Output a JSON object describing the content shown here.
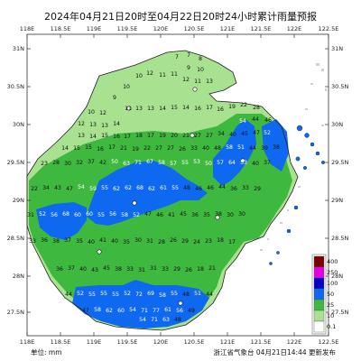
{
  "title": "2024年04月21日20时至04月22日20时24小时累计雨量预报",
  "axes": {
    "top_lon": [
      "118E",
      "118.5E",
      "119E",
      "119.5E",
      "120E",
      "120.5E",
      "121E",
      "121.5E",
      "122E",
      "122.5E"
    ],
    "bottom_lon": [
      "118E",
      "118.5E",
      "119E",
      "119.5E",
      "120E",
      "120.5E",
      "121E",
      "121.5E",
      "122E",
      "122.5E"
    ],
    "left_lat": [
      "31N",
      "30.5N",
      "30N",
      "29.5N",
      "29N",
      "28.5N",
      "28N",
      "27.5N"
    ],
    "right_lat": [
      "31N",
      "30.5N",
      "30N",
      "29.5N",
      "29N",
      "28.5N",
      "28N",
      "27.5N"
    ]
  },
  "legend": {
    "levels": [
      "400",
      "250",
      "100",
      "50",
      "25",
      "10",
      "0.1"
    ],
    "colors": [
      "#7a0000",
      "#e400e4",
      "#0000c8",
      "#0f68f0",
      "#3fb83f",
      "#a8e290",
      "#ffffff"
    ]
  },
  "footer": {
    "unit": "单位: mm",
    "issuer": "浙江省气象台 04月21日14:44 更新发布"
  },
  "stations": [
    [
      "7",
      196,
      65
    ],
    [
      "7",
      209,
      63
    ],
    [
      "8",
      222,
      67
    ],
    [
      "9",
      209,
      77
    ],
    [
      "10",
      222,
      79
    ],
    [
      "11",
      193,
      84
    ],
    [
      "12",
      206,
      90
    ],
    [
      "11",
      219,
      92
    ],
    [
      "13",
      232,
      92
    ],
    [
      "12",
      166,
      83
    ],
    [
      "11",
      180,
      85
    ],
    [
      "10",
      154,
      86
    ],
    [
      "10",
      140,
      98
    ],
    [
      "9",
      127,
      110
    ],
    [
      "10",
      101,
      126
    ],
    [
      "12",
      114,
      127
    ],
    [
      "12",
      90,
      139
    ],
    [
      "13",
      103,
      140
    ],
    [
      "13",
      116,
      141
    ],
    [
      "14",
      129,
      139
    ],
    [
      "11",
      142,
      122
    ],
    [
      "13",
      154,
      122
    ],
    [
      "13",
      167,
      122
    ],
    [
      "14",
      180,
      122
    ],
    [
      "15",
      193,
      121
    ],
    [
      "14",
      206,
      121
    ],
    [
      "16",
      219,
      122
    ],
    [
      "17",
      232,
      121
    ],
    [
      "16",
      244,
      123
    ],
    [
      "19",
      257,
      120
    ],
    [
      "22",
      270,
      118
    ],
    [
      "28",
      284,
      121
    ],
    [
      "13",
      90,
      152
    ],
    [
      "14",
      103,
      153
    ],
    [
      "15",
      116,
      152
    ],
    [
      "16",
      129,
      153
    ],
    [
      "17",
      141,
      153
    ],
    [
      "18",
      154,
      152
    ],
    [
      "17",
      167,
      152
    ],
    [
      "19",
      180,
      152
    ],
    [
      "20",
      193,
      152
    ],
    [
      "21",
      206,
      152
    ],
    [
      "27",
      219,
      152
    ],
    [
      "27",
      232,
      152
    ],
    [
      "34",
      245,
      150
    ],
    [
      "40",
      258,
      151
    ],
    [
      "45",
      271,
      150
    ],
    [
      "47",
      284,
      149
    ],
    [
      "52",
      296,
      149
    ],
    [
      "54",
      269,
      136
    ],
    [
      "44",
      283,
      134
    ],
    [
      "46",
      297,
      135
    ],
    [
      "14",
      72,
      166
    ],
    [
      "15",
      85,
      166
    ],
    [
      "15",
      98,
      165
    ],
    [
      "16",
      111,
      167
    ],
    [
      "17",
      124,
      165
    ],
    [
      "21",
      137,
      166
    ],
    [
      "19",
      150,
      167
    ],
    [
      "22",
      163,
      166
    ],
    [
      "27",
      176,
      166
    ],
    [
      "27",
      189,
      166
    ],
    [
      "26",
      202,
      167
    ],
    [
      "33",
      215,
      166
    ],
    [
      "40",
      228,
      166
    ],
    [
      "48",
      241,
      166
    ],
    [
      "58",
      254,
      165
    ],
    [
      "51",
      267,
      165
    ],
    [
      "44",
      280,
      166
    ],
    [
      "39",
      293,
      166
    ],
    [
      "38",
      306,
      165
    ],
    [
      "23",
      49,
      183
    ],
    [
      "28",
      62,
      182
    ],
    [
      "30",
      75,
      183
    ],
    [
      "32",
      88,
      182
    ],
    [
      "37",
      101,
      181
    ],
    [
      "42",
      114,
      182
    ],
    [
      "50",
      127,
      181
    ],
    [
      "63",
      140,
      183
    ],
    [
      "71",
      153,
      182
    ],
    [
      "67",
      166,
      181
    ],
    [
      "58",
      179,
      182
    ],
    [
      "57",
      192,
      183
    ],
    [
      "55",
      205,
      182
    ],
    [
      "53",
      218,
      181
    ],
    [
      "50",
      231,
      183
    ],
    [
      "57",
      244,
      182
    ],
    [
      "64",
      257,
      182
    ],
    [
      "53",
      270,
      182
    ],
    [
      "40",
      283,
      183
    ],
    [
      "37",
      296,
      182
    ],
    [
      "22",
      38,
      211
    ],
    [
      "34",
      51,
      210
    ],
    [
      "43",
      64,
      210
    ],
    [
      "47",
      77,
      211
    ],
    [
      "54",
      90,
      209
    ],
    [
      "59",
      103,
      211
    ],
    [
      "55",
      116,
      210
    ],
    [
      "62",
      129,
      211
    ],
    [
      "62",
      142,
      210
    ],
    [
      "68",
      155,
      210
    ],
    [
      "62",
      168,
      211
    ],
    [
      "61",
      181,
      210
    ],
    [
      "55",
      194,
      210
    ],
    [
      "48",
      207,
      210
    ],
    [
      "46",
      220,
      211
    ],
    [
      "46",
      233,
      210
    ],
    [
      "44",
      246,
      209
    ],
    [
      "36",
      259,
      211
    ],
    [
      "33",
      272,
      210
    ],
    [
      "29",
      285,
      211
    ],
    [
      "31",
      34,
      240
    ],
    [
      "52",
      47,
      239
    ],
    [
      "56",
      60,
      240
    ],
    [
      "68",
      73,
      239
    ],
    [
      "60",
      86,
      240
    ],
    [
      "60",
      99,
      239
    ],
    [
      "55",
      112,
      240
    ],
    [
      "56",
      125,
      239
    ],
    [
      "58",
      138,
      240
    ],
    [
      "52",
      151,
      240
    ],
    [
      "47",
      164,
      239
    ],
    [
      "46",
      177,
      240
    ],
    [
      "41",
      190,
      240
    ],
    [
      "45",
      203,
      239
    ],
    [
      "36",
      216,
      240
    ],
    [
      "35",
      229,
      240
    ],
    [
      "38",
      242,
      239
    ],
    [
      "30",
      255,
      240
    ],
    [
      "30",
      268,
      239
    ],
    [
      "33",
      36,
      269
    ],
    [
      "36",
      49,
      268
    ],
    [
      "38",
      62,
      269
    ],
    [
      "37",
      75,
      268
    ],
    [
      "35",
      88,
      269
    ],
    [
      "40",
      101,
      270
    ],
    [
      "41",
      114,
      268
    ],
    [
      "40",
      127,
      269
    ],
    [
      "35",
      140,
      270
    ],
    [
      "30",
      153,
      268
    ],
    [
      "31",
      166,
      269
    ],
    [
      "28",
      179,
      270
    ],
    [
      "26",
      192,
      268
    ],
    [
      "29",
      205,
      269
    ],
    [
      "24",
      218,
      270
    ],
    [
      "23",
      231,
      269
    ],
    [
      "18",
      244,
      268
    ],
    [
      "17",
      257,
      270
    ],
    [
      "36",
      66,
      300
    ],
    [
      "37",
      79,
      299
    ],
    [
      "40",
      92,
      300
    ],
    [
      "43",
      105,
      301
    ],
    [
      "45",
      118,
      299
    ],
    [
      "38",
      131,
      300
    ],
    [
      "33",
      144,
      300
    ],
    [
      "31",
      157,
      301
    ],
    [
      "31",
      170,
      299
    ],
    [
      "33",
      183,
      300
    ],
    [
      "29",
      196,
      300
    ],
    [
      "26",
      209,
      301
    ],
    [
      "18",
      222,
      300
    ],
    [
      "21",
      235,
      299
    ],
    [
      "44",
      76,
      328
    ],
    [
      "52",
      89,
      327
    ],
    [
      "55",
      102,
      328
    ],
    [
      "55",
      115,
      327
    ],
    [
      "55",
      128,
      328
    ],
    [
      "52",
      141,
      327
    ],
    [
      "72",
      154,
      328
    ],
    [
      "69",
      167,
      327
    ],
    [
      "58",
      180,
      329
    ],
    [
      "55",
      193,
      327
    ],
    [
      "48",
      206,
      328
    ],
    [
      "51",
      219,
      327
    ],
    [
      "44",
      232,
      328
    ],
    [
      "47",
      95,
      346
    ],
    [
      "58",
      108,
      345
    ],
    [
      "62",
      121,
      346
    ],
    [
      "60",
      134,
      346
    ],
    [
      "54",
      147,
      345
    ],
    [
      "71",
      160,
      346
    ],
    [
      "77",
      173,
      346
    ],
    [
      "61",
      186,
      345
    ],
    [
      "56",
      199,
      346
    ],
    [
      "49",
      212,
      346
    ],
    [
      "54",
      158,
      356
    ],
    [
      "71",
      171,
      356
    ],
    [
      "63",
      184,
      356
    ],
    [
      "48",
      197,
      356
    ]
  ]
}
